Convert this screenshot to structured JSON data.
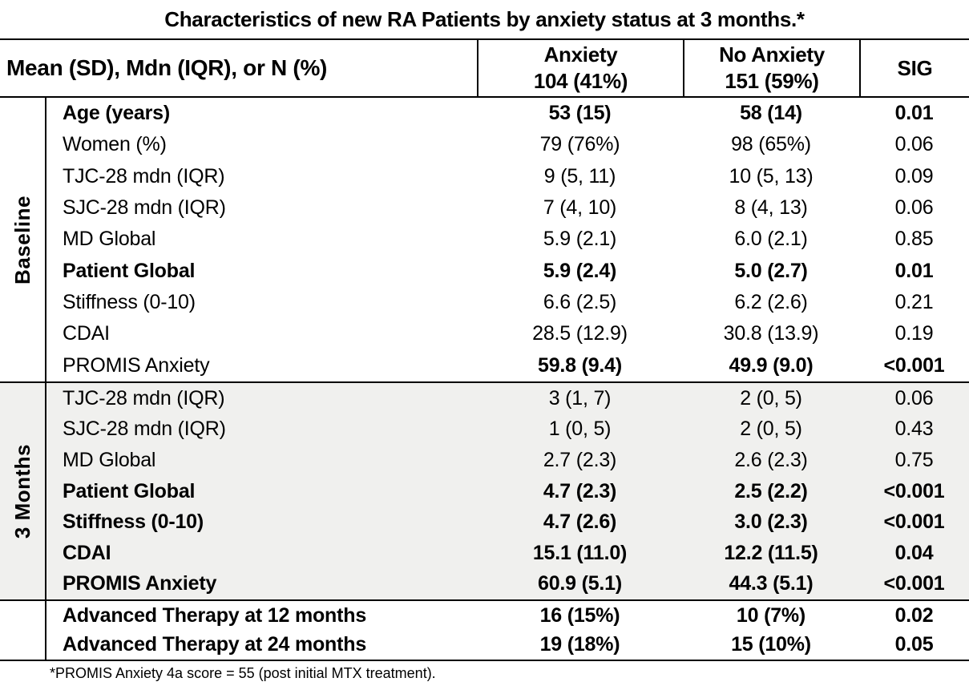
{
  "title": "Characteristics of new RA Patients by anxiety status at 3 months.*",
  "colors": {
    "text": "#000000",
    "border": "#000000",
    "shaded_section_bg": "#f0f0ee",
    "page_bg": "#ffffff"
  },
  "header": {
    "label": "Mean (SD), Mdn (IQR), or N (%)",
    "columns": [
      {
        "line1": "Anxiety",
        "line2": "104 (41%)"
      },
      {
        "line1": "No Anxiety",
        "line2": "151 (59%)"
      },
      {
        "line1": "SIG",
        "line2": ""
      }
    ]
  },
  "sections": [
    {
      "name": "Baseline",
      "shaded": false,
      "rows": [
        {
          "label": "Age (years)",
          "anxiety": "53 (15)",
          "no_anxiety": "58 (14)",
          "sig": "0.01",
          "bold_label": true,
          "bold_values": true
        },
        {
          "label": "Women (%)",
          "anxiety": "79 (76%)",
          "no_anxiety": "98 (65%)",
          "sig": "0.06",
          "bold_label": false,
          "bold_values": false
        },
        {
          "label": "TJC-28 mdn (IQR)",
          "anxiety": "9 (5, 11)",
          "no_anxiety": "10 (5, 13)",
          "sig": "0.09",
          "bold_label": false,
          "bold_values": false
        },
        {
          "label": "SJC-28 mdn (IQR)",
          "anxiety": "7 (4, 10)",
          "no_anxiety": "8 (4, 13)",
          "sig": "0.06",
          "bold_label": false,
          "bold_values": false
        },
        {
          "label": "MD Global",
          "anxiety": "5.9 (2.1)",
          "no_anxiety": "6.0 (2.1)",
          "sig": "0.85",
          "bold_label": false,
          "bold_values": false
        },
        {
          "label": "Patient Global",
          "anxiety": "5.9 (2.4)",
          "no_anxiety": "5.0 (2.7)",
          "sig": "0.01",
          "bold_label": true,
          "bold_values": true
        },
        {
          "label": "Stiffness (0-10)",
          "anxiety": "6.6 (2.5)",
          "no_anxiety": "6.2 (2.6)",
          "sig": "0.21",
          "bold_label": false,
          "bold_values": false
        },
        {
          "label": "CDAI",
          "anxiety": "28.5 (12.9)",
          "no_anxiety": "30.8 (13.9)",
          "sig": "0.19",
          "bold_label": false,
          "bold_values": false
        },
        {
          "label": "PROMIS Anxiety",
          "anxiety": "59.8 (9.4)",
          "no_anxiety": "49.9 (9.0)",
          "sig": "<0.001",
          "bold_label": false,
          "bold_values": true
        }
      ]
    },
    {
      "name": "3 Months",
      "shaded": true,
      "rows": [
        {
          "label": "TJC-28 mdn (IQR)",
          "anxiety": "3 (1, 7)",
          "no_anxiety": "2 (0, 5)",
          "sig": "0.06",
          "bold_label": false,
          "bold_values": false
        },
        {
          "label": "SJC-28 mdn (IQR)",
          "anxiety": "1 (0, 5)",
          "no_anxiety": "2 (0, 5)",
          "sig": "0.43",
          "bold_label": false,
          "bold_values": false
        },
        {
          "label": "MD Global",
          "anxiety": "2.7 (2.3)",
          "no_anxiety": "2.6 (2.3)",
          "sig": "0.75",
          "bold_label": false,
          "bold_values": false
        },
        {
          "label": "Patient Global",
          "anxiety": "4.7 (2.3)",
          "no_anxiety": "2.5 (2.2)",
          "sig": "<0.001",
          "bold_label": true,
          "bold_values": true
        },
        {
          "label": "Stiffness (0-10)",
          "anxiety": "4.7 (2.6)",
          "no_anxiety": "3.0 (2.3)",
          "sig": "<0.001",
          "bold_label": true,
          "bold_values": true
        },
        {
          "label": "CDAI",
          "anxiety": "15.1 (11.0)",
          "no_anxiety": "12.2 (11.5)",
          "sig": "0.04",
          "bold_label": true,
          "bold_values": true
        },
        {
          "label": "PROMIS Anxiety",
          "anxiety": "60.9 (5.1)",
          "no_anxiety": "44.3 (5.1)",
          "sig": "<0.001",
          "bold_label": true,
          "bold_values": true
        }
      ]
    },
    {
      "name": "",
      "shaded": false,
      "rows": [
        {
          "label": "Advanced Therapy at 12 months",
          "anxiety": "16 (15%)",
          "no_anxiety": "10 (7%)",
          "sig": "0.02",
          "bold_label": true,
          "bold_values": true
        },
        {
          "label": "Advanced Therapy at 24 months",
          "anxiety": "19 (18%)",
          "no_anxiety": "15 (10%)",
          "sig": "0.05",
          "bold_label": true,
          "bold_values": true
        }
      ]
    }
  ],
  "footnote": "*PROMIS Anxiety 4a score = 55 (post initial MTX treatment)."
}
